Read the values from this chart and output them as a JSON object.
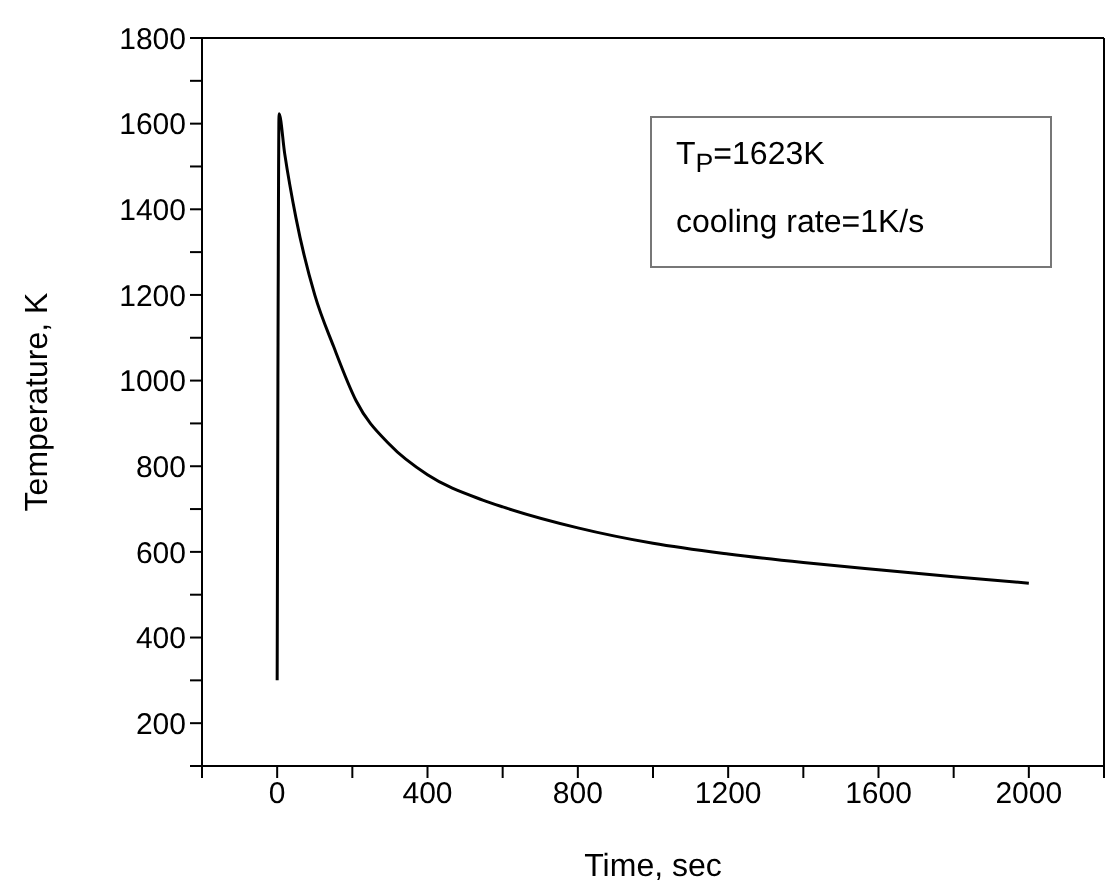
{
  "chart_data": {
    "type": "line",
    "xlabel": "Time, sec",
    "ylabel": "Temperature, K",
    "annotations": [
      "T$_{P}$=1623K",
      "cooling rate=1K/s"
    ],
    "x": [
      0,
      2,
      5,
      20,
      50,
      100,
      150,
      210,
      300,
      400,
      547,
      600,
      800,
      1000,
      1200,
      1400,
      1600,
      1800,
      2000
    ],
    "series": [
      {
        "color": "#000000",
        "values": [
          300,
          1000,
          1623,
          1530,
          1380,
          1200,
          1080,
          953,
          850,
          780,
          721,
          705,
          656,
          620,
          595,
          575,
          558,
          542,
          527
        ]
      }
    ],
    "xlim": [
      -200,
      2200
    ],
    "xticks": [
      {
        "value": -200,
        "label": null
      },
      0,
      {
        "value": 200,
        "label": null
      },
      400,
      {
        "value": 600,
        "label": null
      },
      800,
      {
        "value": 1000,
        "label": null
      },
      1200,
      {
        "value": 1400,
        "label": null
      },
      1600,
      {
        "value": 1800,
        "label": null
      },
      2000,
      {
        "value": 2200,
        "label": null
      }
    ],
    "ylim": [
      100,
      1800
    ],
    "yticks": [
      {
        "value": 100,
        "label": null
      },
      200,
      {
        "value": 300,
        "label": null
      },
      400,
      {
        "value": 500,
        "label": null
      },
      600,
      {
        "value": 700,
        "label": null
      },
      800,
      {
        "value": 900,
        "label": null
      },
      1000,
      {
        "value": 1100,
        "label": null
      },
      1200,
      {
        "value": 1300,
        "label": null
      },
      1400,
      {
        "value": 1500,
        "label": null
      },
      1600,
      {
        "value": 1700,
        "label": null
      },
      1800
    ],
    "marker": "none",
    "line_style": "solid"
  }
}
